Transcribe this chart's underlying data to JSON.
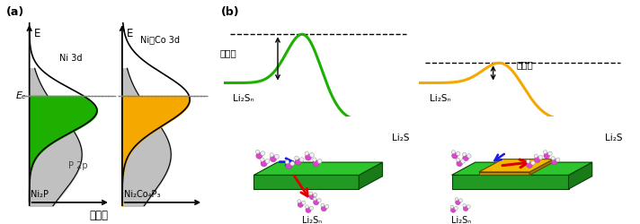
{
  "panel_a_label": "(a)",
  "panel_b_label": "(b)",
  "ef_label": "Eₑ",
  "e_label": "E",
  "dos_label": "态密度",
  "ni3d_label": "Ni 3d",
  "nicos3d_label": "Ni，Co 3d",
  "p2p_label": "P 2p",
  "ni2p_label": "Ni₂P",
  "ni2co4p3_label": "Ni₂Co₄P₃",
  "activation_energy_label": "活化能",
  "li2sn_label": "Li₂Sₙ",
  "li2s_label": "Li₂S",
  "green_color": "#1db000",
  "yellow_color": "#f5a800",
  "gray_color": "#c0c0c0",
  "bg_color": "#ffffff",
  "arrow_red": "#dd0000",
  "arrow_blue": "#1a1aee",
  "green_surface_top": "#2ec42e",
  "green_surface_front": "#229922",
  "green_surface_right": "#1a7a1a",
  "yellow_surface_top": "#f0b800",
  "yellow_surface_front": "#c09000",
  "yellow_surface_right": "#a07800",
  "mol_pink": "#dd44cc",
  "mol_white": "#f0f0f0"
}
